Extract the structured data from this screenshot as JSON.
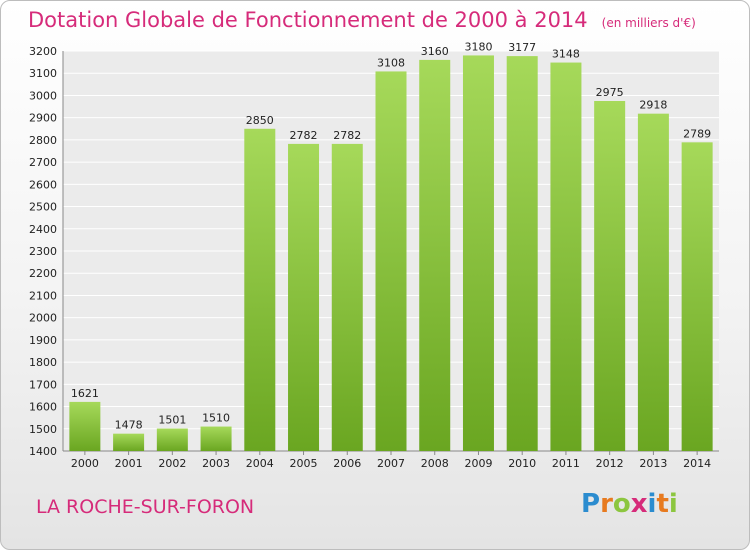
{
  "chart_data": {
    "type": "bar",
    "title": "Dotation Globale de Fonctionnement de 2000 à 2014",
    "subtitle": "(en milliers d'€)",
    "categories": [
      "2000",
      "2001",
      "2002",
      "2003",
      "2004",
      "2005",
      "2006",
      "2007",
      "2008",
      "2009",
      "2010",
      "2011",
      "2012",
      "2013",
      "2014"
    ],
    "values": [
      1621,
      1478,
      1501,
      1510,
      2850,
      2782,
      2782,
      3108,
      3160,
      3180,
      3177,
      3148,
      2975,
      2918,
      2789
    ],
    "ylim": [
      1400,
      3200
    ],
    "ytick_step": 100,
    "grid": true,
    "bar_color": "#8cc63f"
  },
  "footer": {
    "city": "LA ROCHE-SUR-FORON",
    "logo_letters": [
      "P",
      "r",
      "o",
      "x",
      "i",
      "t",
      "i"
    ],
    "logo_colors": [
      "#2b8ccf",
      "#e77a1f",
      "#8cc63f",
      "#d62b7a",
      "#2b8ccf",
      "#e77a1f",
      "#8cc63f"
    ]
  }
}
